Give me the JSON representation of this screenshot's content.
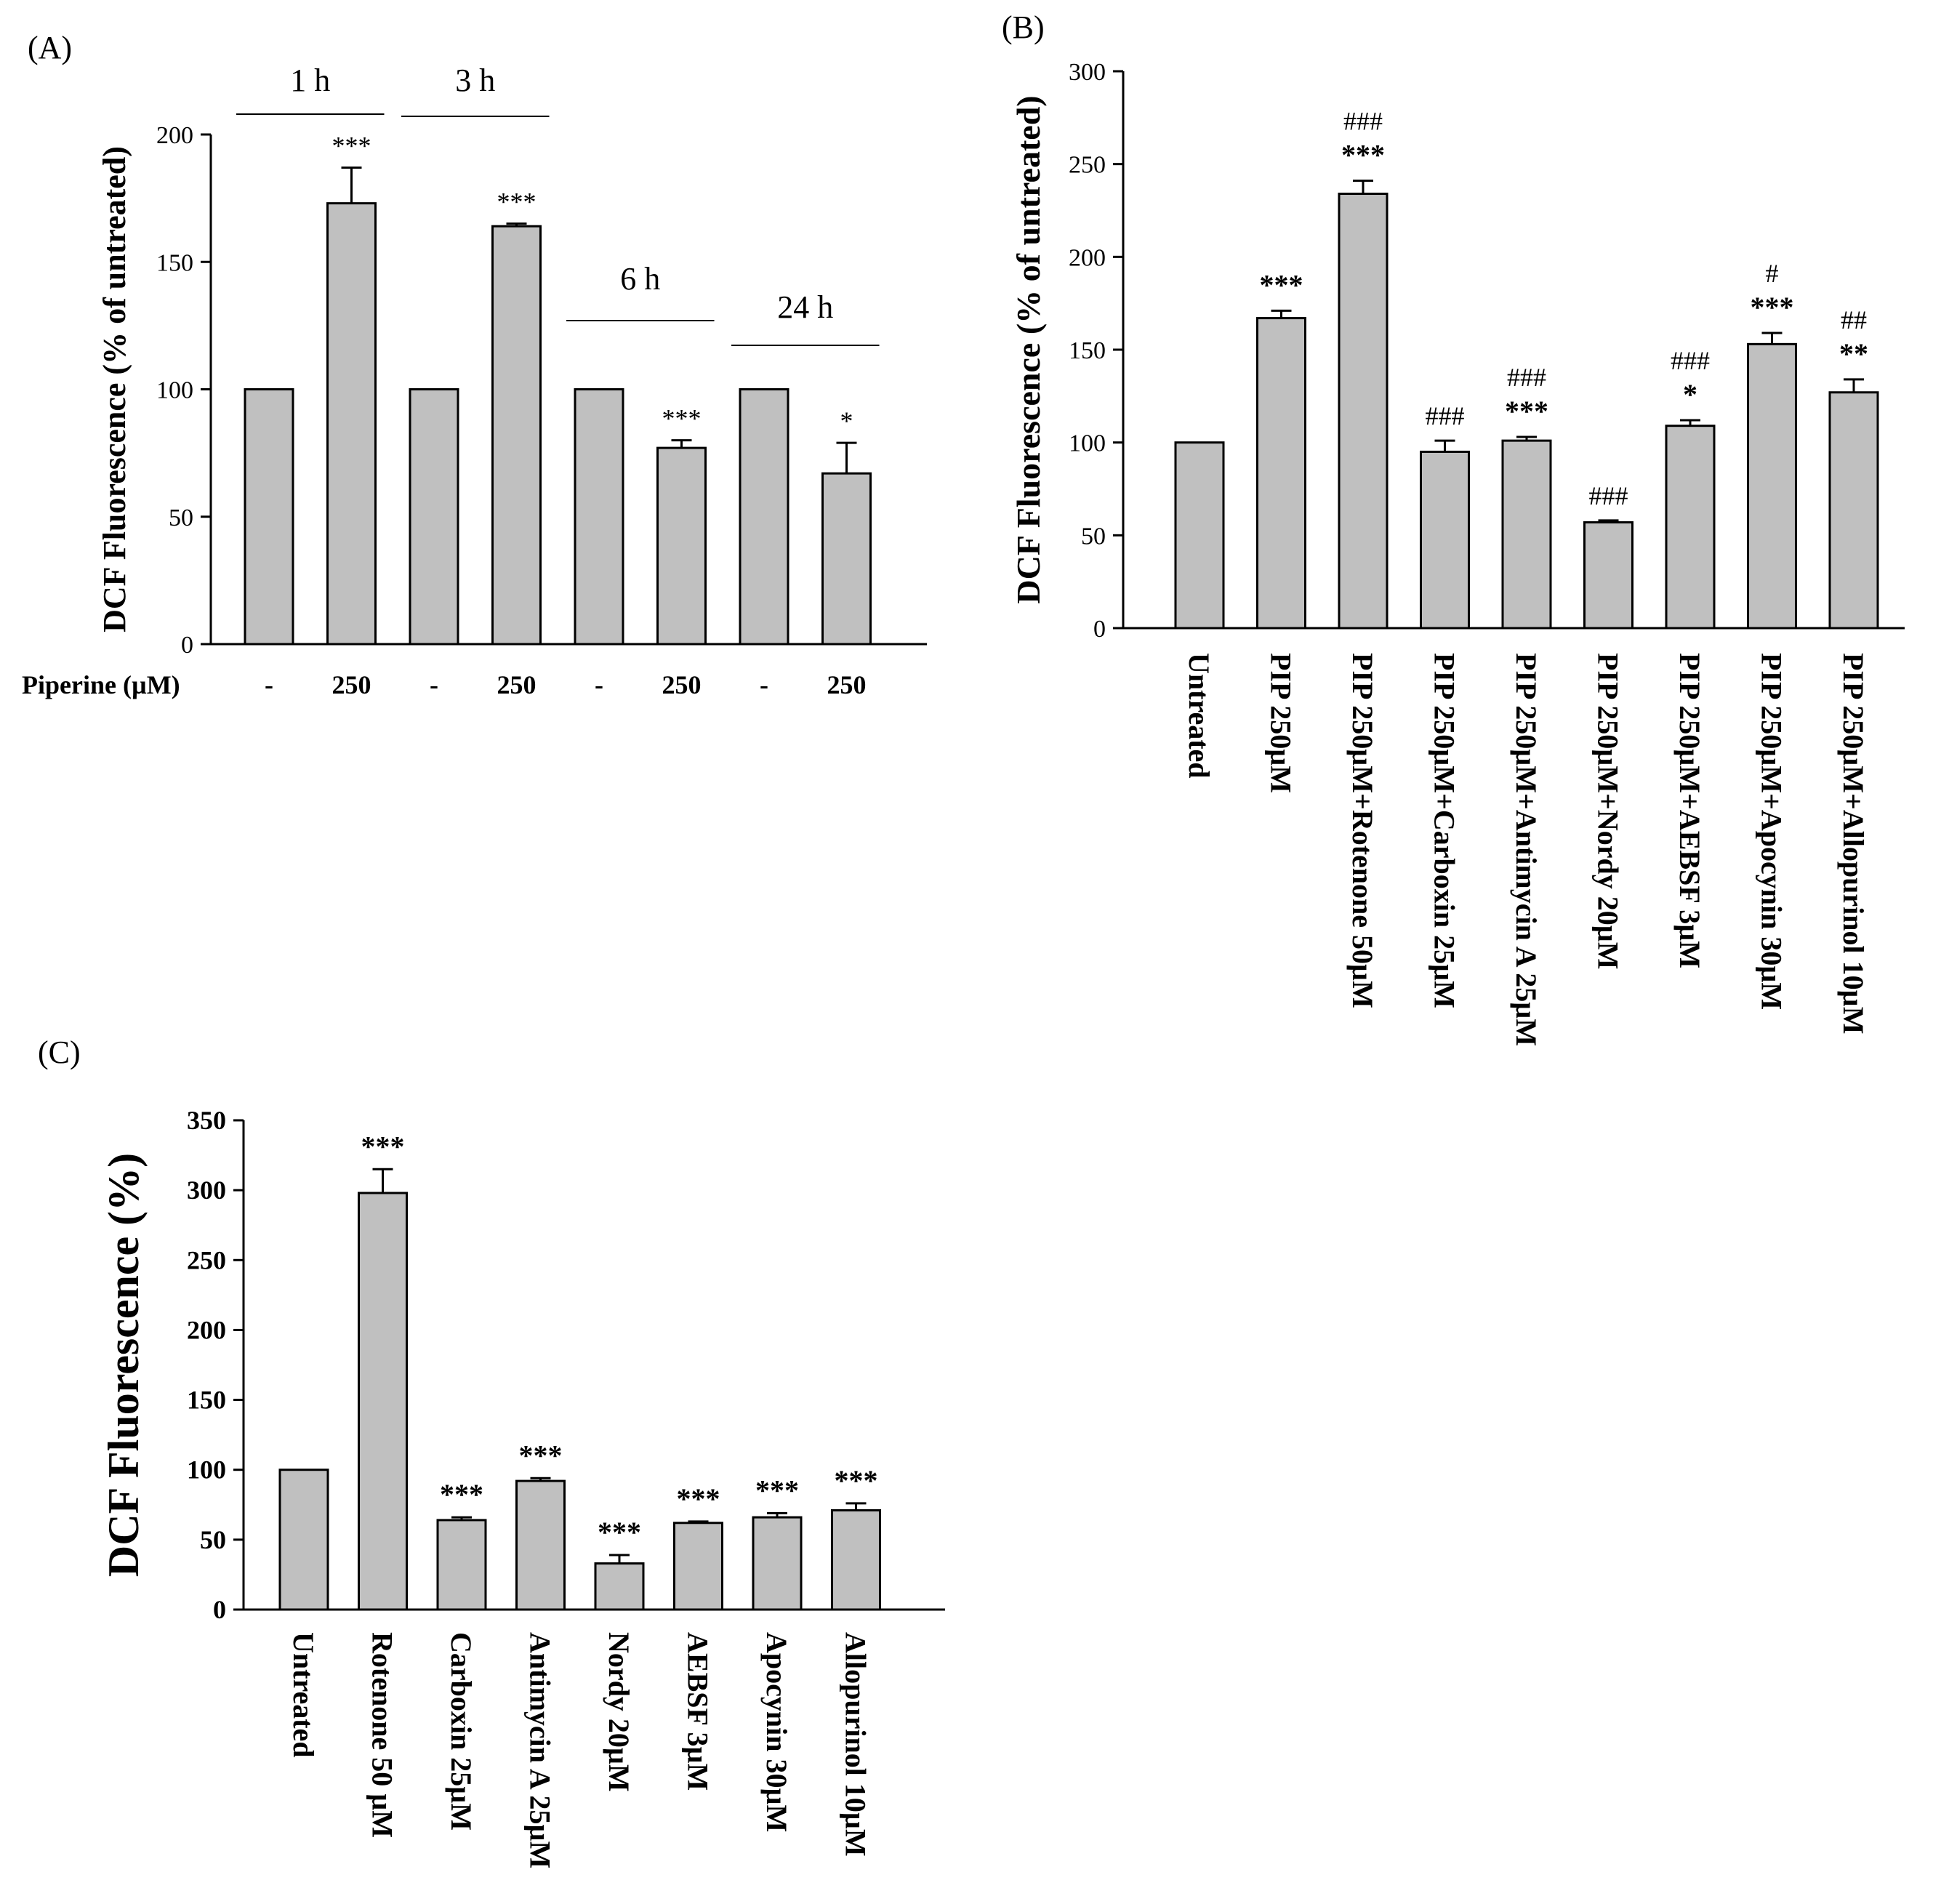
{
  "chart_data": [
    {
      "panel": "(A)",
      "type": "bar",
      "ylabel": "DCF Fluorescence (% of untreated)",
      "ylim": [
        0,
        200
      ],
      "yticks": [
        0,
        50,
        100,
        150,
        200
      ],
      "xlabel_row_title": "Piperine (µM)",
      "groups": [
        "1 h",
        "3 h",
        "6 h",
        "24 h"
      ],
      "categories": [
        "-",
        "250",
        "-",
        "250",
        "-",
        "250",
        "-",
        "250"
      ],
      "values": [
        100,
        173,
        100,
        164,
        100,
        77,
        100,
        67
      ],
      "errors": [
        0,
        14,
        0,
        1,
        0,
        3,
        0,
        12
      ],
      "annotations": [
        "",
        "***",
        "",
        "***",
        "",
        "***",
        "",
        "*"
      ]
    },
    {
      "panel": "(B)",
      "type": "bar",
      "ylabel": "DCF Fluorescence (% of untreated)",
      "ylim": [
        0,
        300
      ],
      "yticks": [
        0,
        50,
        100,
        150,
        200,
        250,
        300
      ],
      "categories": [
        "Untreated",
        "PIP 250µM",
        "PIP 250µM+Rotenone 50µM",
        "PIP 250µM+Carboxin 25µM",
        "PIP 250µM+Antimycin A 25µM",
        "PIP 250µM+Nordy 20µM",
        "PIP 250µM+AEBSF 3µM",
        "PIP 250µM+Apocynin 30µM",
        "PIP 250µM+Allopurinol 10µM"
      ],
      "values": [
        100,
        167,
        234,
        95,
        101,
        57,
        109,
        153,
        127
      ],
      "errors": [
        0,
        4,
        7,
        6,
        2,
        1,
        3,
        6,
        7
      ],
      "annotations_top": [
        "",
        "",
        "###",
        "###",
        "###",
        "###",
        "###",
        "#",
        "##"
      ],
      "annotations_bottom": [
        "",
        "***",
        "***",
        "",
        "***",
        "",
        "*",
        "***",
        "**"
      ]
    },
    {
      "panel": "(C)",
      "type": "bar",
      "ylabel": "DCF Fluorescence (%)",
      "ylim": [
        0,
        350
      ],
      "yticks": [
        0,
        50,
        100,
        150,
        200,
        250,
        300,
        350
      ],
      "categories": [
        "Untreated",
        "Rotenone 50 µM",
        "Carboxin 25µM",
        "Antimycin A 25µM",
        "Nordy 20µM",
        "AEBSF 3µM",
        "Apocynin 30µM",
        "Allopurinol 10µM"
      ],
      "values": [
        100,
        298,
        64,
        92,
        33,
        62,
        66,
        71
      ],
      "errors": [
        0,
        17,
        2,
        2,
        6,
        1,
        3,
        5
      ],
      "annotations": [
        "",
        "***",
        "***",
        "***",
        "***",
        "***",
        "***",
        "***"
      ]
    }
  ]
}
